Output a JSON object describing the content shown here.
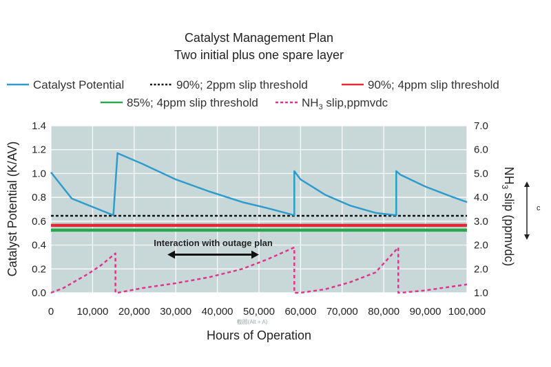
{
  "chart_data": {
    "type": "line",
    "title": "Catalyst Management Plan",
    "subtitle": "Two initial plus one spare layer",
    "xlabel": "Hours of Operation",
    "ylabel_left": "Catalyst Potential (K/AV)",
    "ylabel_right": "NH",
    "ylabel_right_sub": "3",
    "ylabel_right_tail": " slip (ppmvdc)",
    "xlim": [
      0,
      100000
    ],
    "ylim_left": [
      0.0,
      1.4
    ],
    "x_ticks": [
      0,
      10000,
      20000,
      30000,
      40000,
      50000,
      60000,
      70000,
      80000,
      90000,
      100000
    ],
    "x_tick_labels": [
      "0",
      "10,000",
      "20,000",
      "30,000",
      "40,000",
      "50,000",
      "60,000",
      "70,000",
      "80,000",
      "90,000",
      "100,000"
    ],
    "y_left_ticks": [
      0.0,
      0.2,
      0.4,
      0.6,
      0.8,
      1.0,
      1.2,
      1.4
    ],
    "y_left_tick_labels": [
      "0.0",
      "0.2",
      "0.4",
      "0.6",
      "0.8",
      "1.0",
      "1.2",
      "1.4"
    ],
    "y_right_tick_labels": [
      "1.0",
      "2.0",
      "2.0",
      "3.0",
      "4.0",
      "5.0",
      "6.0",
      "7.0"
    ],
    "grid": true,
    "background_color": "#c8d8d8",
    "legend": [
      {
        "label": "Catalyst Potential",
        "style": "solid",
        "color": "#2e9bcc"
      },
      {
        "label": "90%; 2ppm slip threshold",
        "style": "dotted",
        "color": "#111111"
      },
      {
        "label": "90%; 4ppm slip threshold",
        "style": "solid",
        "color": "#e02a35"
      },
      {
        "label": "85%; 4ppm slip threshold",
        "style": "solid",
        "color": "#28a84a"
      },
      {
        "label": "NH",
        "label_sub": "3",
        "label_tail": " slip,ppmvdc",
        "style": "dashed",
        "color": "#e0338f"
      }
    ],
    "series": [
      {
        "name": "Catalyst Potential",
        "axis": "left",
        "color": "#2e9bcc",
        "x": [
          0,
          5000,
          15000,
          15000,
          16000,
          22000,
          30000,
          38000,
          46000,
          52000,
          58500,
          58500,
          60000,
          66000,
          72000,
          78000,
          83000,
          83000,
          84000,
          90000,
          96000,
          100000
        ],
        "y": [
          1.01,
          0.79,
          0.65,
          0.65,
          1.17,
          1.08,
          0.95,
          0.85,
          0.76,
          0.71,
          0.65,
          1.02,
          0.95,
          0.82,
          0.73,
          0.67,
          0.65,
          1.02,
          0.99,
          0.89,
          0.81,
          0.76
        ]
      },
      {
        "name": "90%; 2ppm slip threshold",
        "axis": "left",
        "color": "#111111",
        "x": [
          0,
          100000
        ],
        "y": [
          0.645,
          0.645
        ]
      },
      {
        "name": "90%; 4ppm slip threshold",
        "axis": "left",
        "color": "#e02a35",
        "x": [
          0,
          100000
        ],
        "y": [
          0.565,
          0.565
        ]
      },
      {
        "name": "85%; 4ppm slip threshold",
        "axis": "left",
        "color": "#28a84a",
        "x": [
          0,
          100000
        ],
        "y": [
          0.525,
          0.525
        ]
      },
      {
        "name": "NH3 slip,ppmvdc",
        "axis": "left",
        "color": "#e0338f",
        "x": [
          0,
          3000,
          6000,
          9000,
          12000,
          15500,
          15500,
          16000,
          22000,
          30000,
          38000,
          46000,
          52000,
          58500,
          58500,
          60000,
          66000,
          72000,
          78000,
          83500,
          83500,
          84000,
          90000,
          96000,
          100000
        ],
        "y": [
          0.0,
          0.04,
          0.1,
          0.16,
          0.23,
          0.33,
          0.0,
          0.0,
          0.04,
          0.08,
          0.13,
          0.2,
          0.28,
          0.38,
          0.0,
          0.0,
          0.03,
          0.09,
          0.17,
          0.38,
          0.0,
          0.0,
          0.02,
          0.05,
          0.07
        ]
      }
    ],
    "annotations": [
      {
        "text": "Interaction with outage plan",
        "x_start": 28000,
        "x_end": 50000,
        "y_arrow": 0.32,
        "y_text": 0.42
      }
    ],
    "side_marker": "c"
  },
  "watermark": "截图(Alt + A)"
}
